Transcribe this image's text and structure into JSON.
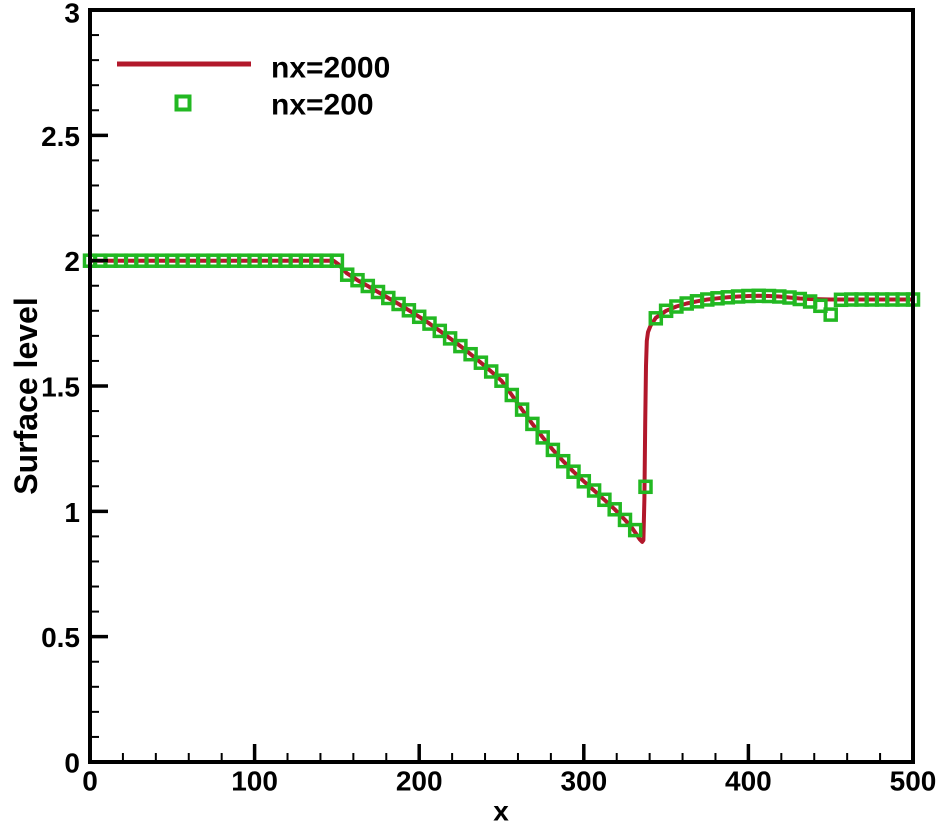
{
  "chart_data": {
    "type": "line",
    "title": "",
    "xlabel": "x",
    "ylabel": "Surface level",
    "xlim": [
      0,
      500
    ],
    "ylim": [
      0,
      3
    ],
    "grid": false,
    "x_ticks": {
      "values": [
        0,
        100,
        200,
        300,
        400,
        500
      ],
      "labels": [
        "0",
        "100",
        "200",
        "300",
        "400",
        "500"
      ],
      "minor_step": 20
    },
    "y_ticks": {
      "values": [
        0,
        0.5,
        1,
        1.5,
        2,
        2.5,
        3
      ],
      "labels": [
        "0",
        "0.5",
        "1",
        "1.5",
        "2",
        "2.5",
        "3"
      ],
      "minor_step": 0.1
    },
    "colors": {
      "axis": "#000000",
      "background": "#ffffff",
      "series_line": "#b2182b",
      "series_marker": "#22b822"
    },
    "legend": {
      "position": "top-left",
      "entries": [
        {
          "label": "nx=2000",
          "style": "line",
          "color": "#b2182b"
        },
        {
          "label": "nx=200",
          "style": "open-square-marker",
          "color": "#22b822"
        }
      ]
    },
    "series": [
      {
        "name": "nx=2000",
        "type": "line",
        "color": "#b2182b",
        "line_width": 4,
        "points": [
          [
            0,
            2.0
          ],
          [
            148,
            2.0
          ],
          [
            151,
            1.985
          ],
          [
            156,
            1.95
          ],
          [
            162.5,
            1.922
          ],
          [
            168.75,
            1.899
          ],
          [
            175,
            1.875
          ],
          [
            181.25,
            1.851
          ],
          [
            187.5,
            1.827
          ],
          [
            193.75,
            1.802
          ],
          [
            200,
            1.776
          ],
          [
            206.25,
            1.749
          ],
          [
            212.5,
            1.72
          ],
          [
            218.75,
            1.69
          ],
          [
            225,
            1.659
          ],
          [
            231.25,
            1.627
          ],
          [
            237.5,
            1.593
          ],
          [
            243.75,
            1.558
          ],
          [
            250,
            1.521
          ],
          [
            256.25,
            1.464
          ],
          [
            262.5,
            1.406
          ],
          [
            268.75,
            1.349
          ],
          [
            275,
            1.295
          ],
          [
            281.25,
            1.245
          ],
          [
            287.5,
            1.2
          ],
          [
            293.75,
            1.158
          ],
          [
            300,
            1.12
          ],
          [
            306.25,
            1.083
          ],
          [
            312.5,
            1.046
          ],
          [
            318.75,
            1.008
          ],
          [
            325,
            0.966
          ],
          [
            329,
            0.937
          ],
          [
            332,
            0.908
          ],
          [
            334,
            0.888
          ],
          [
            335.5,
            0.878
          ],
          [
            336.2,
            0.885
          ],
          [
            336.8,
            1.05
          ],
          [
            337.3,
            1.35
          ],
          [
            337.8,
            1.58
          ],
          [
            338.3,
            1.68
          ],
          [
            339,
            1.715
          ],
          [
            340.5,
            1.74
          ],
          [
            343.75,
            1.772
          ],
          [
            350,
            1.8
          ],
          [
            356.25,
            1.817
          ],
          [
            362.5,
            1.829
          ],
          [
            368.75,
            1.838
          ],
          [
            375,
            1.845
          ],
          [
            381.25,
            1.85
          ],
          [
            387.5,
            1.854
          ],
          [
            393.75,
            1.857
          ],
          [
            400,
            1.859
          ],
          [
            406.25,
            1.86
          ],
          [
            412.5,
            1.859
          ],
          [
            418.75,
            1.857
          ],
          [
            425,
            1.853
          ],
          [
            431.25,
            1.849
          ],
          [
            437.5,
            1.847
          ],
          [
            443.75,
            1.846
          ],
          [
            450,
            1.845
          ],
          [
            462.5,
            1.845
          ],
          [
            475,
            1.845
          ],
          [
            487.5,
            1.845
          ],
          [
            500,
            1.845
          ]
        ]
      },
      {
        "name": "nx=200",
        "type": "scatter",
        "marker": "open-square",
        "color": "#22b822",
        "marker_size": 11,
        "points": [
          [
            0,
            2.0
          ],
          [
            6.25,
            2.0
          ],
          [
            12.5,
            2.0
          ],
          [
            18.75,
            2.0
          ],
          [
            25,
            2.0
          ],
          [
            31.25,
            2.0
          ],
          [
            37.5,
            2.0
          ],
          [
            43.75,
            2.0
          ],
          [
            50,
            2.0
          ],
          [
            56.25,
            2.0
          ],
          [
            62.5,
            2.0
          ],
          [
            68.75,
            2.0
          ],
          [
            75,
            2.0
          ],
          [
            81.25,
            2.0
          ],
          [
            87.5,
            2.0
          ],
          [
            93.75,
            2.0
          ],
          [
            100,
            2.0
          ],
          [
            106.25,
            2.0
          ],
          [
            112.5,
            2.0
          ],
          [
            118.75,
            2.0
          ],
          [
            125,
            2.0
          ],
          [
            131.25,
            2.0
          ],
          [
            137.5,
            2.0
          ],
          [
            143.75,
            2.0
          ],
          [
            150,
            2.0
          ],
          [
            156.25,
            1.944
          ],
          [
            162.5,
            1.922
          ],
          [
            168.75,
            1.899
          ],
          [
            175,
            1.875
          ],
          [
            181.25,
            1.851
          ],
          [
            187.5,
            1.827
          ],
          [
            193.75,
            1.802
          ],
          [
            200,
            1.776
          ],
          [
            206.25,
            1.749
          ],
          [
            212.5,
            1.72
          ],
          [
            218.75,
            1.69
          ],
          [
            225,
            1.659
          ],
          [
            231.25,
            1.627
          ],
          [
            237.5,
            1.593
          ],
          [
            243.75,
            1.558
          ],
          [
            250,
            1.521
          ],
          [
            256.25,
            1.464
          ],
          [
            262.5,
            1.406
          ],
          [
            268.75,
            1.349
          ],
          [
            275,
            1.295
          ],
          [
            281.25,
            1.245
          ],
          [
            287.5,
            1.2
          ],
          [
            293.75,
            1.158
          ],
          [
            300,
            1.12
          ],
          [
            306.25,
            1.083
          ],
          [
            312.5,
            1.046
          ],
          [
            318.75,
            1.008
          ],
          [
            325,
            0.966
          ],
          [
            331.25,
            0.925
          ],
          [
            337.5,
            1.098
          ],
          [
            343.75,
            1.77
          ],
          [
            350,
            1.8
          ],
          [
            356.25,
            1.817
          ],
          [
            362.5,
            1.829
          ],
          [
            368.75,
            1.838
          ],
          [
            375,
            1.845
          ],
          [
            381.25,
            1.85
          ],
          [
            387.5,
            1.854
          ],
          [
            393.75,
            1.857
          ],
          [
            400,
            1.859
          ],
          [
            406.25,
            1.86
          ],
          [
            412.5,
            1.859
          ],
          [
            418.75,
            1.857
          ],
          [
            425,
            1.853
          ],
          [
            431.25,
            1.847
          ],
          [
            437.5,
            1.837
          ],
          [
            443.75,
            1.82
          ],
          [
            450,
            1.785
          ],
          [
            456.25,
            1.844
          ],
          [
            462.5,
            1.845
          ],
          [
            468.75,
            1.845
          ],
          [
            475,
            1.845
          ],
          [
            481.25,
            1.845
          ],
          [
            487.5,
            1.845
          ],
          [
            493.75,
            1.845
          ],
          [
            500,
            1.845
          ]
        ]
      }
    ]
  }
}
